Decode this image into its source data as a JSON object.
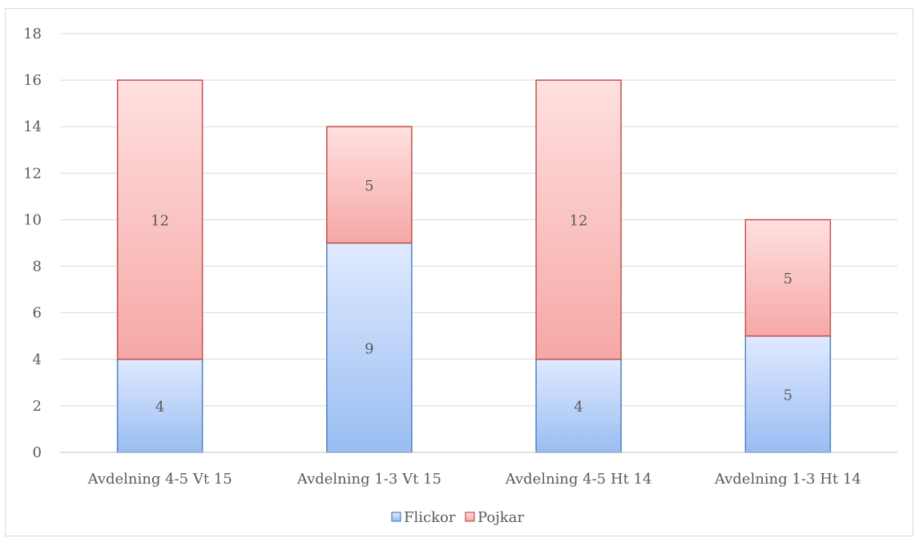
{
  "chart_data": {
    "type": "bar",
    "stacked": true,
    "categories": [
      "Avdelning 4-5 Vt 15",
      "Avdelning 1-3 Vt 15",
      "Avdelning 4-5 Ht 14",
      "Avdelning 1-3 Ht 14"
    ],
    "series": [
      {
        "name": "Flickor",
        "values": [
          4,
          9,
          4,
          5
        ]
      },
      {
        "name": "Pojkar",
        "values": [
          12,
          5,
          12,
          5
        ]
      }
    ],
    "yticks": [
      0,
      2,
      4,
      6,
      8,
      10,
      12,
      14,
      16,
      18
    ],
    "ylim": [
      0,
      18
    ],
    "grid": true,
    "legend_position": "bottom",
    "data_labels": true,
    "colors": {
      "Flickor_top": "#e0eaff",
      "Flickor_bottom": "#99bdf2",
      "Flickor_border": "#4f81bd",
      "Pojkar_top": "#ffe0e0",
      "Pojkar_bottom": "#f5a8a6",
      "Pojkar_border": "#c0504d",
      "gridline": "#d9d9d9",
      "axis": "#bfbfbf",
      "text": "#595959"
    }
  }
}
